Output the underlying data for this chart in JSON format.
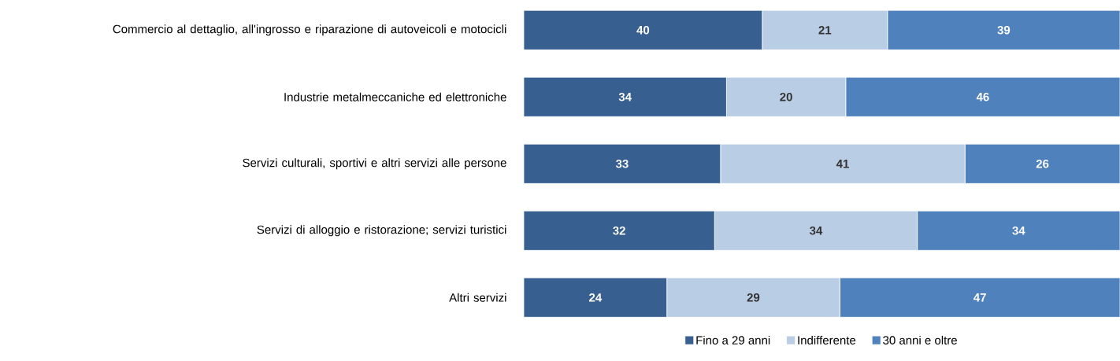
{
  "chart_data": {
    "type": "bar",
    "orientation": "horizontal",
    "stacked": true,
    "data_labels": true,
    "legend": "bottom",
    "categories": [
      "Commercio al dettaglio, all'ingrosso e riparazione di autoveicoli e motocicli",
      "Industrie metalmeccaniche ed elettroniche",
      "Servizi culturali, sportivi e altri servizi alle persone",
      "Servizi di alloggio e ristorazione; servizi turistici",
      "Altri servizi"
    ],
    "series": [
      {
        "name": "Fino a 29 anni",
        "color": "#375f8f",
        "values": [
          40,
          34,
          33,
          32,
          24
        ]
      },
      {
        "name": "Indifferente",
        "color": "#b9cde5",
        "values": [
          21,
          20,
          41,
          34,
          29
        ]
      },
      {
        "name": "30 anni e oltre",
        "color": "#4f81bd",
        "values": [
          39,
          46,
          26,
          34,
          47
        ]
      }
    ]
  }
}
